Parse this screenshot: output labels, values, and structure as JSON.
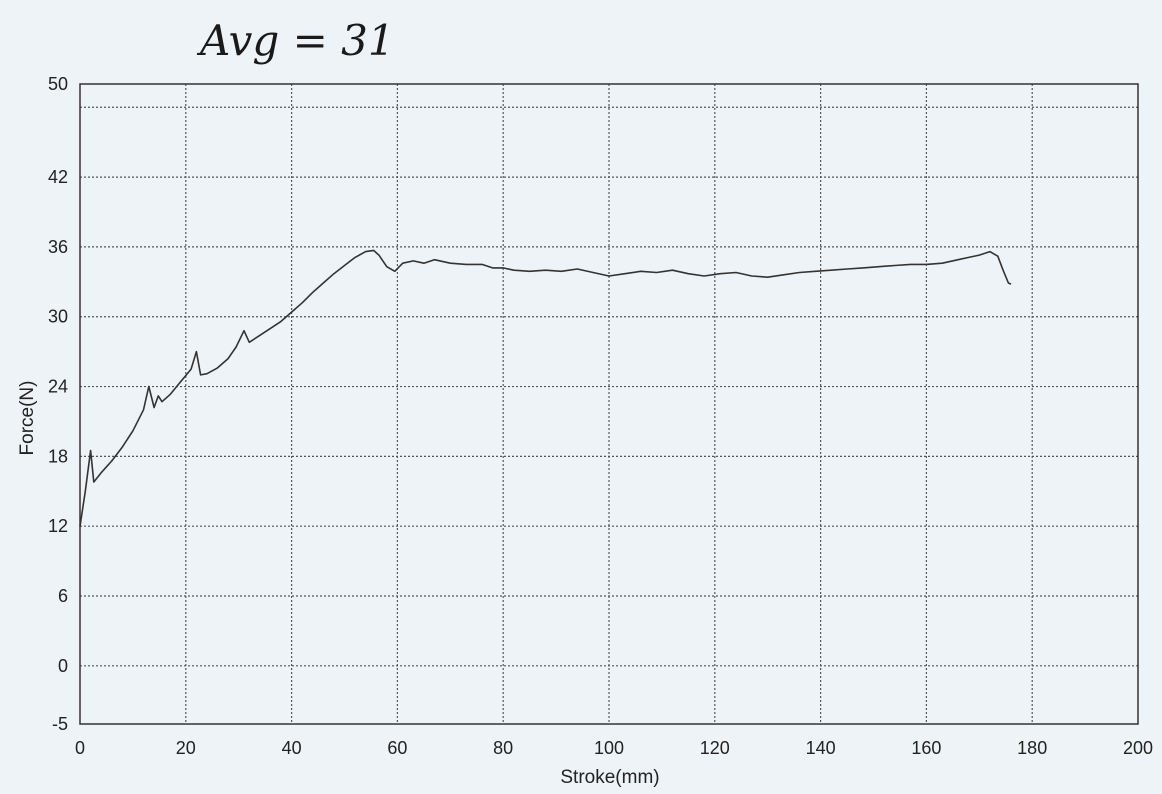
{
  "chart_data": {
    "type": "line",
    "annotation": "Avg = 31",
    "xlabel": "Stroke(mm)",
    "ylabel": "Force(N)",
    "xlim": [
      0,
      200
    ],
    "ylim": [
      -5,
      50
    ],
    "x_ticks": [
      0,
      20,
      40,
      60,
      80,
      100,
      120,
      140,
      160,
      180,
      200
    ],
    "y_ticks": [
      -5,
      0,
      6,
      12,
      18,
      24,
      30,
      36,
      42,
      50
    ],
    "horizontal_gridlines": [
      0,
      6,
      12,
      18,
      24,
      30,
      36,
      42,
      48
    ],
    "grid": true,
    "grid_style": "dotted",
    "colors": {
      "background": "#eef3f7",
      "line": "#333333",
      "grid": "#555555",
      "frame": "#333333"
    },
    "series": [
      {
        "points": [
          [
            0,
            12
          ],
          [
            1,
            15
          ],
          [
            2,
            18.5
          ],
          [
            2.6,
            15.8
          ],
          [
            4,
            16.6
          ],
          [
            6,
            17.6
          ],
          [
            8,
            18.8
          ],
          [
            10,
            20.2
          ],
          [
            12,
            22
          ],
          [
            13,
            24
          ],
          [
            14,
            22.2
          ],
          [
            14.8,
            23.2
          ],
          [
            15.5,
            22.7
          ],
          [
            17,
            23.3
          ],
          [
            19,
            24.4
          ],
          [
            21,
            25.5
          ],
          [
            22,
            27
          ],
          [
            22.8,
            25
          ],
          [
            24,
            25.1
          ],
          [
            26,
            25.6
          ],
          [
            28,
            26.4
          ],
          [
            29.5,
            27.4
          ],
          [
            31,
            28.8
          ],
          [
            32,
            27.8
          ],
          [
            34,
            28.4
          ],
          [
            36,
            29
          ],
          [
            38,
            29.6
          ],
          [
            40,
            30.4
          ],
          [
            42,
            31.2
          ],
          [
            44,
            32.1
          ],
          [
            46,
            32.9
          ],
          [
            48,
            33.7
          ],
          [
            50,
            34.4
          ],
          [
            52,
            35.1
          ],
          [
            54,
            35.6
          ],
          [
            55.5,
            35.7
          ],
          [
            56.5,
            35.3
          ],
          [
            58,
            34.3
          ],
          [
            59.5,
            33.9
          ],
          [
            61,
            34.6
          ],
          [
            63,
            34.8
          ],
          [
            65,
            34.6
          ],
          [
            67,
            34.9
          ],
          [
            70,
            34.6
          ],
          [
            73,
            34.5
          ],
          [
            76,
            34.5
          ],
          [
            78,
            34.2
          ],
          [
            80,
            34.2
          ],
          [
            82,
            34
          ],
          [
            85,
            33.9
          ],
          [
            88,
            34
          ],
          [
            91,
            33.9
          ],
          [
            94,
            34.1
          ],
          [
            97,
            33.8
          ],
          [
            100,
            33.5
          ],
          [
            103,
            33.7
          ],
          [
            106,
            33.9
          ],
          [
            109,
            33.8
          ],
          [
            112,
            34
          ],
          [
            115,
            33.7
          ],
          [
            118,
            33.5
          ],
          [
            121,
            33.7
          ],
          [
            124,
            33.8
          ],
          [
            127,
            33.5
          ],
          [
            130,
            33.4
          ],
          [
            133,
            33.6
          ],
          [
            136,
            33.8
          ],
          [
            139,
            33.9
          ],
          [
            142,
            34
          ],
          [
            145,
            34.1
          ],
          [
            148,
            34.2
          ],
          [
            151,
            34.3
          ],
          [
            154,
            34.4
          ],
          [
            157,
            34.5
          ],
          [
            160,
            34.5
          ],
          [
            163,
            34.6
          ],
          [
            166,
            34.9
          ],
          [
            168,
            35.1
          ],
          [
            170,
            35.3
          ],
          [
            172,
            35.6
          ],
          [
            173.5,
            35.2
          ],
          [
            174.5,
            34
          ],
          [
            175.5,
            32.9
          ],
          [
            176,
            32.8
          ]
        ]
      }
    ]
  }
}
